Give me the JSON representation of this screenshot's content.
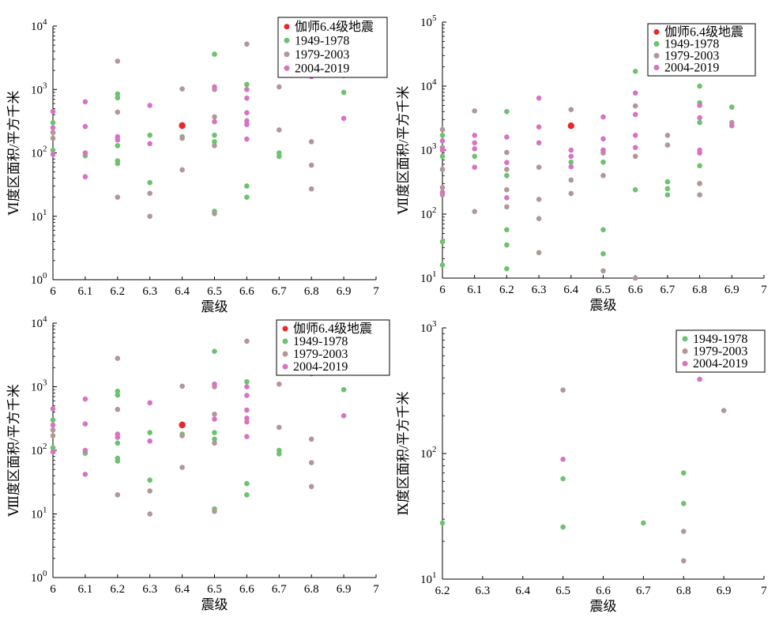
{
  "chart_data": [
    {
      "type": "scatter",
      "xlabel": "震级",
      "ylabel": "Ⅵ度区面积/平方千米",
      "xlim": [
        6,
        7
      ],
      "ylim": [
        1,
        10000
      ],
      "yscale": "log",
      "xticks": [
        "6",
        "6.1",
        "6.2",
        "6.3",
        "6.4",
        "6.5",
        "6.6",
        "6.7",
        "6.8",
        "6.9",
        "7"
      ],
      "yticks": [
        {
          "label": "10",
          "exp": "0"
        },
        {
          "label": "10",
          "exp": "1"
        },
        {
          "label": "10",
          "exp": "2"
        },
        {
          "label": "10",
          "exp": "3"
        },
        {
          "label": "10",
          "exp": "4"
        }
      ],
      "legend_position": "top-right",
      "series": [
        {
          "name": "伽师6.4级地震",
          "color": "#e8272b",
          "points": [
            [
              6.4,
              270
            ]
          ]
        },
        {
          "name": "1949-1978",
          "color": "#6cc26e",
          "points": [
            [
              6.0,
              300
            ],
            [
              6.0,
              110
            ],
            [
              6.1,
              90
            ],
            [
              6.2,
              850
            ],
            [
              6.2,
              740
            ],
            [
              6.2,
              130
            ],
            [
              6.2,
              75
            ],
            [
              6.2,
              68
            ],
            [
              6.3,
              190
            ],
            [
              6.3,
              34
            ],
            [
              6.4,
              180
            ],
            [
              6.5,
              3600
            ],
            [
              6.5,
              190
            ],
            [
              6.5,
              150
            ],
            [
              6.5,
              12
            ],
            [
              6.6,
              1200
            ],
            [
              6.6,
              30
            ],
            [
              6.6,
              20
            ],
            [
              6.7,
              100
            ],
            [
              6.7,
              88
            ],
            [
              6.9,
              900
            ]
          ]
        },
        {
          "name": "1979-2003",
          "color": "#b39797",
          "points": [
            [
              6.0,
              210
            ],
            [
              6.0,
              170
            ],
            [
              6.2,
              2800
            ],
            [
              6.2,
              440
            ],
            [
              6.2,
              20
            ],
            [
              6.3,
              23
            ],
            [
              6.3,
              10
            ],
            [
              6.4,
              1020
            ],
            [
              6.4,
              170
            ],
            [
              6.4,
              54
            ],
            [
              6.5,
              1000
            ],
            [
              6.5,
              370
            ],
            [
              6.5,
              130
            ],
            [
              6.5,
              11
            ],
            [
              6.6,
              5200
            ],
            [
              6.7,
              1100
            ],
            [
              6.7,
              230
            ],
            [
              6.8,
              150
            ],
            [
              6.8,
              64
            ],
            [
              6.8,
              27
            ],
            [
              6.9,
              1650
            ]
          ]
        },
        {
          "name": "2004-2019",
          "color": "#d873c4",
          "points": [
            [
              6.0,
              450
            ],
            [
              6.0,
              250
            ],
            [
              6.0,
              95
            ],
            [
              6.1,
              640
            ],
            [
              6.1,
              260
            ],
            [
              6.1,
              100
            ],
            [
              6.1,
              42
            ],
            [
              6.2,
              180
            ],
            [
              6.2,
              160
            ],
            [
              6.3,
              560
            ],
            [
              6.3,
              140
            ],
            [
              6.4,
              260
            ],
            [
              6.5,
              1100
            ],
            [
              6.5,
              310
            ],
            [
              6.6,
              1000
            ],
            [
              6.6,
              730
            ],
            [
              6.6,
              430
            ],
            [
              6.6,
              320
            ],
            [
              6.6,
              280
            ],
            [
              6.6,
              165
            ],
            [
              6.8,
              1600
            ],
            [
              6.9,
              350
            ]
          ]
        }
      ]
    },
    {
      "type": "scatter",
      "xlabel": "震级",
      "ylabel": "Ⅶ度区面积/平方千米",
      "xlim": [
        6,
        7
      ],
      "ylim": [
        10,
        100000
      ],
      "yscale": "log",
      "xticks": [
        "6",
        "6.1",
        "6.2",
        "6.3",
        "6.4",
        "6.5",
        "6.6",
        "6.7",
        "6.8",
        "6.9",
        "7"
      ],
      "yticks": [
        {
          "label": "10",
          "exp": "1"
        },
        {
          "label": "10",
          "exp": "2"
        },
        {
          "label": "10",
          "exp": "3"
        },
        {
          "label": "10",
          "exp": "4"
        },
        {
          "label": "10",
          "exp": "5"
        }
      ],
      "legend_position": "top-right",
      "series": [
        {
          "name": "伽师6.4级地震",
          "color": "#e8272b",
          "points": [
            [
              6.4,
              2400
            ]
          ]
        },
        {
          "name": "1949-1978",
          "color": "#6cc26e",
          "points": [
            [
              6.0,
              1700
            ],
            [
              6.0,
              800
            ],
            [
              6.0,
              37
            ],
            [
              6.0,
              16
            ],
            [
              6.1,
              800
            ],
            [
              6.2,
              4000
            ],
            [
              6.2,
              400
            ],
            [
              6.2,
              57
            ],
            [
              6.2,
              33
            ],
            [
              6.2,
              14
            ],
            [
              6.4,
              650
            ],
            [
              6.5,
              650
            ],
            [
              6.5,
              57
            ],
            [
              6.5,
              24
            ],
            [
              6.6,
              17000
            ],
            [
              6.6,
              240
            ],
            [
              6.7,
              320
            ],
            [
              6.7,
              250
            ],
            [
              6.7,
              200
            ],
            [
              6.8,
              10000
            ],
            [
              6.8,
              5500
            ],
            [
              6.8,
              2700
            ],
            [
              6.8,
              570
            ],
            [
              6.8,
              300
            ],
            [
              6.9,
              4700
            ]
          ]
        },
        {
          "name": "1979-2003",
          "color": "#b39797",
          "points": [
            [
              6.0,
              2100
            ],
            [
              6.0,
              1100
            ],
            [
              6.0,
              500
            ],
            [
              6.0,
              260
            ],
            [
              6.0,
              200
            ],
            [
              6.1,
              4100
            ],
            [
              6.1,
              110
            ],
            [
              6.2,
              920
            ],
            [
              6.2,
              500
            ],
            [
              6.2,
              240
            ],
            [
              6.2,
              130
            ],
            [
              6.3,
              540
            ],
            [
              6.3,
              170
            ],
            [
              6.3,
              85
            ],
            [
              6.3,
              25
            ],
            [
              6.4,
              4300
            ],
            [
              6.4,
              340
            ],
            [
              6.4,
              210
            ],
            [
              6.5,
              1000
            ],
            [
              6.5,
              900
            ],
            [
              6.5,
              400
            ],
            [
              6.5,
              13
            ],
            [
              6.6,
              4900
            ],
            [
              6.6,
              800
            ],
            [
              6.6,
              10
            ],
            [
              6.7,
              1700
            ],
            [
              6.7,
              1200
            ],
            [
              6.8,
              300
            ],
            [
              6.8,
              200
            ],
            [
              6.9,
              2700
            ]
          ]
        },
        {
          "name": "2004-2019",
          "color": "#d873c4",
          "points": [
            [
              6.0,
              1400
            ],
            [
              6.0,
              1000
            ],
            [
              6.0,
              220
            ],
            [
              6.1,
              1700
            ],
            [
              6.1,
              1300
            ],
            [
              6.1,
              1050
            ],
            [
              6.1,
              540
            ],
            [
              6.2,
              1600
            ],
            [
              6.2,
              640
            ],
            [
              6.2,
              180
            ],
            [
              6.3,
              6500
            ],
            [
              6.3,
              2300
            ],
            [
              6.3,
              1300
            ],
            [
              6.4,
              1000
            ],
            [
              6.4,
              800
            ],
            [
              6.4,
              550
            ],
            [
              6.5,
              3300
            ],
            [
              6.5,
              1500
            ],
            [
              6.5,
              1000
            ],
            [
              6.6,
              7800
            ],
            [
              6.6,
              3600
            ],
            [
              6.6,
              1700
            ],
            [
              6.6,
              1100
            ],
            [
              6.8,
              5000
            ],
            [
              6.8,
              3200
            ],
            [
              6.8,
              1000
            ],
            [
              6.8,
              900
            ],
            [
              6.9,
              2400
            ]
          ]
        }
      ]
    },
    {
      "type": "scatter",
      "xlabel": "震级",
      "ylabel": "Ⅷ度区面积/平方千米",
      "xlim": [
        6,
        7
      ],
      "ylim": [
        1,
        10000
      ],
      "yscale": "log",
      "xticks": [
        "6",
        "6.1",
        "6.2",
        "6.3",
        "6.4",
        "6.5",
        "6.6",
        "6.7",
        "6.8",
        "6.9",
        "7"
      ],
      "yticks": [
        {
          "label": "10",
          "exp": "0"
        },
        {
          "label": "10",
          "exp": "1"
        },
        {
          "label": "10",
          "exp": "2"
        },
        {
          "label": "10",
          "exp": "3"
        },
        {
          "label": "10",
          "exp": "4"
        }
      ],
      "legend_position": "top-right",
      "series": [
        {
          "name": "伽师6.4级地震",
          "color": "#e8272b",
          "points": [
            [
              6.4,
              250
            ]
          ]
        },
        {
          "name": "1949-1978",
          "color": "#6cc26e",
          "points": [
            [
              6.0,
              300
            ],
            [
              6.0,
              110
            ],
            [
              6.1,
              90
            ],
            [
              6.2,
              850
            ],
            [
              6.2,
              740
            ],
            [
              6.2,
              130
            ],
            [
              6.2,
              75
            ],
            [
              6.2,
              68
            ],
            [
              6.3,
              190
            ],
            [
              6.3,
              34
            ],
            [
              6.4,
              180
            ],
            [
              6.5,
              3600
            ],
            [
              6.5,
              190
            ],
            [
              6.5,
              150
            ],
            [
              6.5,
              12
            ],
            [
              6.6,
              1200
            ],
            [
              6.6,
              30
            ],
            [
              6.6,
              20
            ],
            [
              6.7,
              100
            ],
            [
              6.7,
              88
            ],
            [
              6.9,
              900
            ]
          ]
        },
        {
          "name": "1979-2003",
          "color": "#b39797",
          "points": [
            [
              6.0,
              210
            ],
            [
              6.0,
              170
            ],
            [
              6.2,
              2800
            ],
            [
              6.2,
              440
            ],
            [
              6.2,
              20
            ],
            [
              6.3,
              23
            ],
            [
              6.3,
              10
            ],
            [
              6.4,
              1020
            ],
            [
              6.4,
              170
            ],
            [
              6.4,
              54
            ],
            [
              6.5,
              1000
            ],
            [
              6.5,
              370
            ],
            [
              6.5,
              130
            ],
            [
              6.5,
              11
            ],
            [
              6.6,
              5200
            ],
            [
              6.7,
              1100
            ],
            [
              6.7,
              230
            ],
            [
              6.8,
              150
            ],
            [
              6.8,
              64
            ],
            [
              6.8,
              27
            ],
            [
              6.9,
              1650
            ]
          ]
        },
        {
          "name": "2004-2019",
          "color": "#d873c4",
          "points": [
            [
              6.0,
              450
            ],
            [
              6.0,
              250
            ],
            [
              6.0,
              95
            ],
            [
              6.1,
              640
            ],
            [
              6.1,
              260
            ],
            [
              6.1,
              100
            ],
            [
              6.1,
              42
            ],
            [
              6.2,
              180
            ],
            [
              6.2,
              160
            ],
            [
              6.3,
              560
            ],
            [
              6.3,
              140
            ],
            [
              6.4,
              260
            ],
            [
              6.5,
              1100
            ],
            [
              6.5,
              310
            ],
            [
              6.6,
              1000
            ],
            [
              6.6,
              730
            ],
            [
              6.6,
              430
            ],
            [
              6.6,
              320
            ],
            [
              6.6,
              280
            ],
            [
              6.6,
              165
            ],
            [
              6.8,
              1600
            ],
            [
              6.9,
              350
            ]
          ]
        }
      ]
    },
    {
      "type": "scatter",
      "xlabel": "震级",
      "ylabel": "Ⅸ度区面积/平方千米",
      "xlim": [
        6.2,
        7
      ],
      "ylim": [
        10,
        1000
      ],
      "yscale": "log",
      "xticks": [
        "6.2",
        "6.3",
        "6.4",
        "6.5",
        "6.6",
        "6.7",
        "6.8",
        "6.9",
        "7"
      ],
      "yticks": [
        {
          "label": "10",
          "exp": "1"
        },
        {
          "label": "10",
          "exp": "2"
        },
        {
          "label": "10",
          "exp": "3"
        }
      ],
      "legend_position": "top-right",
      "series": [
        {
          "name": "1949-1978",
          "color": "#6cc26e",
          "points": [
            [
              6.2,
              28
            ],
            [
              6.5,
              63
            ],
            [
              6.5,
              26
            ],
            [
              6.7,
              28
            ],
            [
              6.8,
              70
            ],
            [
              6.8,
              40
            ]
          ]
        },
        {
          "name": "1979-2003",
          "color": "#b39797",
          "points": [
            [
              6.5,
              320
            ],
            [
              6.8,
              24
            ],
            [
              6.8,
              14
            ],
            [
              6.9,
              220
            ]
          ]
        },
        {
          "name": "2004-2019",
          "color": "#d873c4",
          "points": [
            [
              6.5,
              90
            ],
            [
              6.84,
              390
            ]
          ]
        }
      ]
    }
  ]
}
